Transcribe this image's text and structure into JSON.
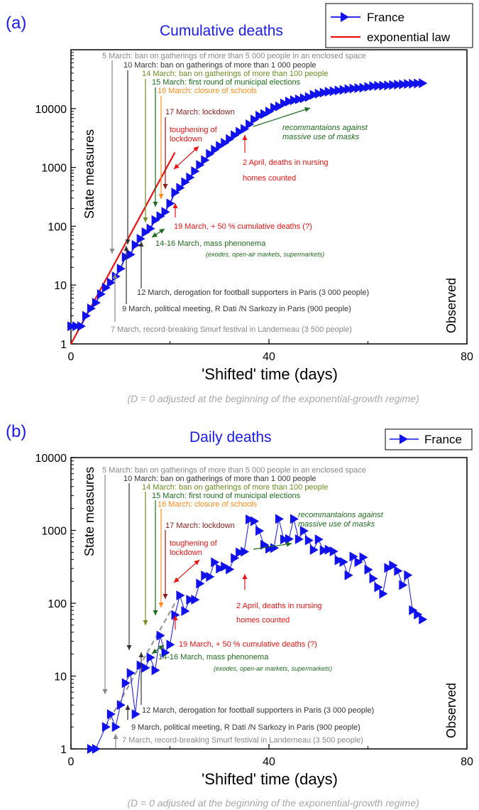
{
  "colors": {
    "france": "#1111ee",
    "law": "#ee1111",
    "title": "#1a1aee",
    "gray": "#888888",
    "dark": "#333333",
    "olive": "#6b8e23",
    "green": "#1e6b1e",
    "orange": "#ff8c1a",
    "darkred": "#8b1a1a",
    "red": "#ee1111",
    "caption": "#a8a8a8"
  },
  "chart_data": [
    {
      "panel_label": "(a)",
      "type": "scatter",
      "title": "Cumulative deaths",
      "xlabel": "'Shifted' time (days)",
      "ylabel": "State measures",
      "right_label": "Observed",
      "caption": "(D = 0 adjusted at the beginning of the exponential-growth regime)",
      "xlim": [
        0,
        80
      ],
      "ylim": [
        1,
        100000
      ],
      "y_scale": "log",
      "x_ticks": [
        0,
        40,
        80
      ],
      "y_ticks": [
        {
          "v": 1,
          "label": "1"
        },
        {
          "v": 10,
          "label": "10"
        },
        {
          "v": 100,
          "label": "100"
        },
        {
          "v": 1000,
          "label": "1000"
        },
        {
          "v": 10000,
          "label": "10000"
        }
      ],
      "legend": {
        "position": "top-right",
        "entries": [
          {
            "label": "France",
            "kind": "marker-line"
          },
          {
            "label": "exponential law",
            "kind": "line"
          }
        ]
      },
      "series": [
        {
          "name": "France",
          "x": [
            0,
            1,
            2,
            3,
            4,
            5,
            6,
            7,
            8,
            9,
            10,
            11,
            12,
            13,
            14,
            15,
            16,
            17,
            18,
            19,
            20,
            21,
            22,
            23,
            24,
            25,
            26,
            27,
            28,
            29,
            30,
            31,
            32,
            33,
            34,
            35,
            36,
            37,
            38,
            39,
            40,
            41,
            42,
            43,
            44,
            45,
            46,
            47,
            48,
            49,
            50,
            51,
            52,
            53,
            54,
            55,
            56,
            57,
            58,
            59,
            60,
            61,
            62,
            63,
            64,
            65,
            66,
            67,
            68,
            69,
            70,
            71
          ],
          "y": [
            2,
            2,
            2,
            3,
            4,
            5,
            7,
            9,
            11,
            14,
            19,
            30,
            33,
            48,
            61,
            79,
            91,
            127,
            148,
            175,
            244,
            372,
            450,
            562,
            674,
            860,
            1100,
            1331,
            1696,
            1995,
            2314,
            2606,
            3024,
            3523,
            4032,
            4503,
            5387,
            6507,
            7560,
            8078,
            8911,
            10328,
            10869,
            12210,
            13197,
            13832,
            14393,
            14967,
            15729,
            17167,
            17920,
            18681,
            19323,
            19718,
            20265,
            20796,
            21340,
            21856,
            22245,
            22614,
            23293,
            24087,
            24379,
            24594,
            24760,
            25201,
            25531,
            25809,
            26230,
            26380,
            26643,
            26991
          ]
        }
      ],
      "fit": {
        "name": "exponential law",
        "x": [
          0,
          21
        ],
        "y": [
          1,
          1800
        ]
      },
      "annotations": [
        {
          "text": "5 March: ban on gatherings of more than 5 000 people in an enclosed space",
          "color": "gray",
          "x": 7
        },
        {
          "text": "10 March: ban on gatherings of more than 1 000 people",
          "color": "dark",
          "x": 11
        },
        {
          "text": "14 March: ban on gatherings of more than 100 people",
          "color": "olive",
          "x": 14
        },
        {
          "text": "15 March: first round of municipal elections",
          "color": "green",
          "x": 16
        },
        {
          "text": "16 March: closure of schools",
          "color": "orange",
          "x": 17.5
        },
        {
          "text": "17 March: lockdown",
          "color": "darkred",
          "x": 18.5
        },
        {
          "text": "toughening of",
          "color": "red"
        },
        {
          "text": "lockdown",
          "color": "red"
        },
        {
          "text": "recommantaions against",
          "color": "green"
        },
        {
          "text": "massive use of masks",
          "color": "green"
        },
        {
          "text": "2 April, deaths in nursing",
          "color": "red",
          "x": 34
        },
        {
          "text": "homes counted",
          "color": "red"
        },
        {
          "text": "19 March, + 50 % cumulative deaths (?)",
          "color": "red",
          "x": 20
        },
        {
          "text": "14-16 March, mass phenonema",
          "color": "green"
        },
        {
          "text": "(exodes, open-air markets, supermarkets)",
          "color": "green"
        },
        {
          "text": "12 March, derogation for football supporters in Paris (3 000 people)",
          "color": "dark",
          "x": 14
        },
        {
          "text": "9 March, political meeting, R Dati /N Sarkozy in Paris (900 people)",
          "color": "dark",
          "x": 11
        },
        {
          "text": "7 March,  record-breaking Smurf festival in Landerneau (3 500 people)",
          "color": "gray",
          "x": 9
        }
      ]
    },
    {
      "panel_label": "(b)",
      "type": "scatter",
      "title": "Daily deaths",
      "xlabel": "'Shifted' time (days)",
      "ylabel": "State measures",
      "right_label": "Observed",
      "caption": "(D = 0 adjusted at the beginning of the exponential-growth regime)",
      "xlim": [
        0,
        80
      ],
      "ylim": [
        1,
        10000
      ],
      "y_scale": "log",
      "x_ticks": [
        0,
        40,
        80
      ],
      "y_ticks": [
        {
          "v": 1,
          "label": "1"
        },
        {
          "v": 10,
          "label": "10"
        },
        {
          "v": 100,
          "label": "100"
        },
        {
          "v": 1000,
          "label": "1000"
        },
        {
          "v": 10000,
          "label": "10000"
        }
      ],
      "legend": {
        "position": "top-right",
        "entries": [
          {
            "label": "France",
            "kind": "marker-line"
          }
        ]
      },
      "series": [
        {
          "name": "France",
          "x": [
            4,
            5,
            7,
            8,
            9,
            10,
            11,
            12,
            13,
            14,
            15,
            16,
            17,
            18,
            19,
            20,
            21,
            22,
            23,
            24,
            25,
            26,
            27,
            28,
            29,
            30,
            31,
            32,
            33,
            34,
            35,
            36,
            37,
            38,
            39,
            40,
            41,
            42,
            43,
            44,
            45,
            46,
            47,
            48,
            49,
            50,
            51,
            52,
            53,
            54,
            55,
            56,
            57,
            58,
            59,
            60,
            61,
            62,
            63,
            64,
            65,
            66,
            67,
            68,
            69,
            70,
            71
          ],
          "y": [
            1,
            1,
            2,
            3,
            2,
            4,
            8,
            11,
            3,
            14,
            13,
            18,
            12,
            36,
            21,
            27,
            69,
            128,
            78,
            112,
            112,
            186,
            240,
            231,
            365,
            299,
            319,
            292,
            418,
            499,
            509,
            1417,
            1341,
            987,
            635,
            561,
            574,
            1438,
            753,
            761,
            1438,
            758,
            987,
            730,
            541,
            754,
            531,
            544,
            516,
            389,
            369,
            242,
            437,
            367,
            427,
            289,
            218,
            166,
            135,
            306,
            330,
            278,
            178,
            243,
            80,
            70,
            60
          ]
        }
      ],
      "trend": {
        "x": [
          7,
          21
        ],
        "y": [
          2,
          100
        ]
      },
      "annotations": [
        {
          "text": "5 March: ban on gatherings of more than 5 000 people in an enclosed space",
          "color": "gray",
          "x": 7
        },
        {
          "text": "10 March: ban on gatherings of more than 1 000 people",
          "color": "dark",
          "x": 12
        },
        {
          "text": "14 March: ban on gatherings of more than 100 people",
          "color": "olive",
          "x": 16
        },
        {
          "text": "15 March: first round of municipal elections",
          "color": "green",
          "x": 17.5
        },
        {
          "text": "16 March: closure of schools",
          "color": "orange",
          "x": 19
        },
        {
          "text": "17 March: lockdown",
          "color": "darkred",
          "x": 20
        },
        {
          "text": "toughening of",
          "color": "red"
        },
        {
          "text": "lockdown",
          "color": "red"
        },
        {
          "text": "recommantaions against",
          "color": "green"
        },
        {
          "text": "massive use of masks",
          "color": "green"
        },
        {
          "text": "2 April, deaths in nursing",
          "color": "red",
          "x": 35
        },
        {
          "text": "homes counted",
          "color": "red"
        },
        {
          "text": "19 March, + 50 % cumulative deaths (?)",
          "color": "red",
          "x": 21
        },
        {
          "text": "14-16 March, mass phenonema",
          "color": "green"
        },
        {
          "text": "(exodes, open-air markets, supermarkets)",
          "color": "green"
        },
        {
          "text": "12 March, derogation for football supporters in Paris (3 000 people)",
          "color": "dark",
          "x": 15
        },
        {
          "text": "9 March, political meeting, R Dati /N Sarkozy in Paris (900 people)",
          "color": "dark",
          "x": 12
        },
        {
          "text": "7 March,  record-breaking Smurf festival in Landerneau (3 500 people)",
          "color": "gray",
          "x": 10
        }
      ]
    }
  ]
}
